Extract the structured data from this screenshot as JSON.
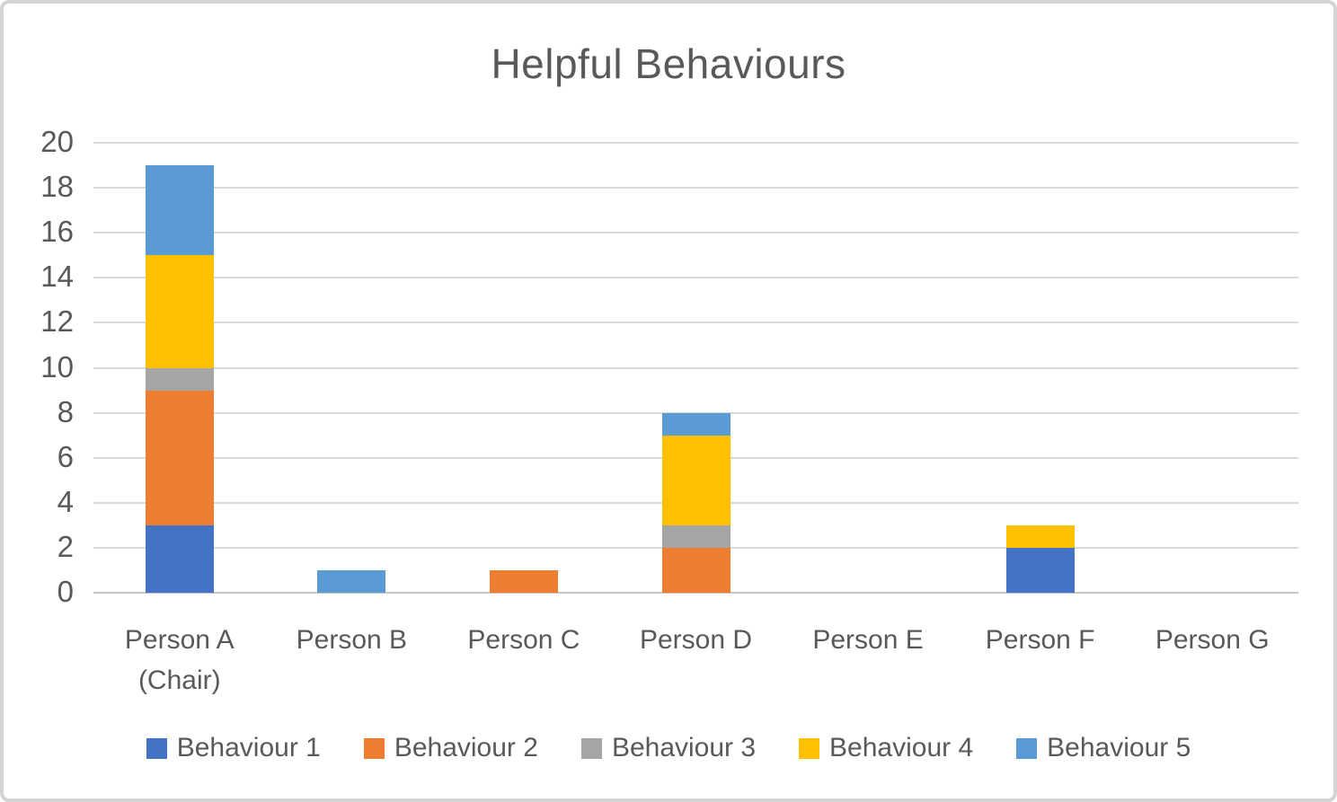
{
  "chart": {
    "title": "Helpful Behaviours"
  },
  "chart_data": {
    "type": "bar",
    "stacked": true,
    "title": "Helpful Behaviours",
    "xlabel": "",
    "ylabel": "",
    "categories": [
      "Person A (Chair)",
      "Person B",
      "Person C",
      "Person D",
      "Person E",
      "Person F",
      "Person G"
    ],
    "series": [
      {
        "name": "Behaviour 1",
        "color": "#4472C4",
        "values": [
          3,
          0,
          0,
          0,
          0,
          2,
          0
        ]
      },
      {
        "name": "Behaviour 2",
        "color": "#ED7D31",
        "values": [
          6,
          0,
          1,
          2,
          0,
          0,
          0
        ]
      },
      {
        "name": "Behaviour 3",
        "color": "#A5A5A5",
        "values": [
          1,
          0,
          0,
          1,
          0,
          0,
          0
        ]
      },
      {
        "name": "Behaviour 4",
        "color": "#FFC000",
        "values": [
          5,
          0,
          0,
          4,
          0,
          1,
          0
        ]
      },
      {
        "name": "Behaviour 5",
        "color": "#5B9BD5",
        "values": [
          4,
          1,
          0,
          1,
          0,
          0,
          0
        ]
      }
    ],
    "category_totals": [
      19,
      1,
      1,
      8,
      0,
      3,
      0
    ],
    "ylim": [
      0,
      20
    ],
    "yticks": [
      0,
      2,
      4,
      6,
      8,
      10,
      12,
      14,
      16,
      18,
      20
    ],
    "grid": true,
    "legend_position": "bottom",
    "colors": {
      "title_text": "#595959",
      "axis_text": "#595959",
      "gridline": "#d9d9d9",
      "axis_line": "#c6c6c6",
      "frame_border": "#d4d4d4",
      "background": "#ffffff"
    }
  }
}
